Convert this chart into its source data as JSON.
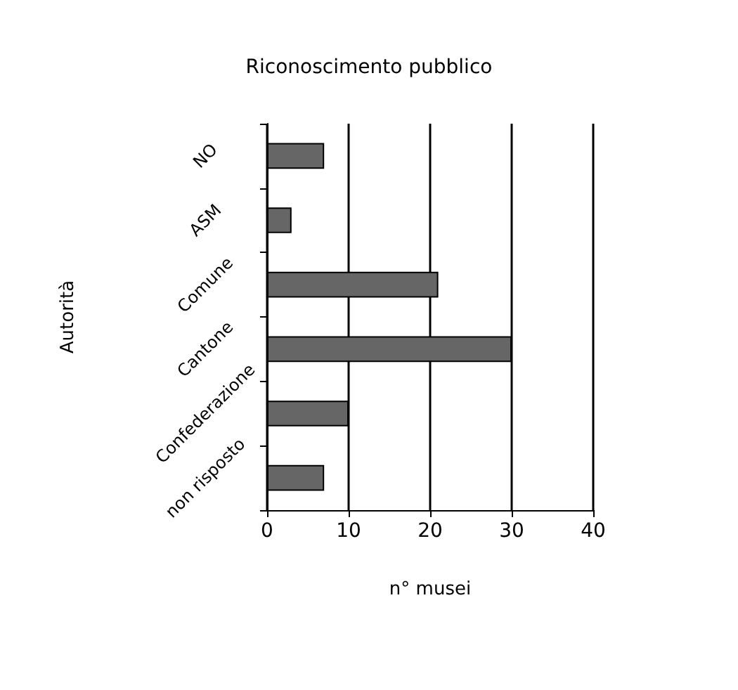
{
  "chart_data": {
    "type": "bar",
    "orientation": "horizontal",
    "title": "Riconoscimento pubblico",
    "xlabel": "n° musei",
    "ylabel": "Autorità",
    "categories": [
      "NO",
      "ASM",
      "Comune",
      "Cantone",
      "Confederazione",
      "non risposto"
    ],
    "values": [
      7,
      3,
      21,
      30,
      10,
      7
    ],
    "color": "#666666",
    "xlim": [
      0,
      40
    ],
    "xticks": [
      0,
      10,
      20,
      30,
      40
    ],
    "grid": "x"
  }
}
